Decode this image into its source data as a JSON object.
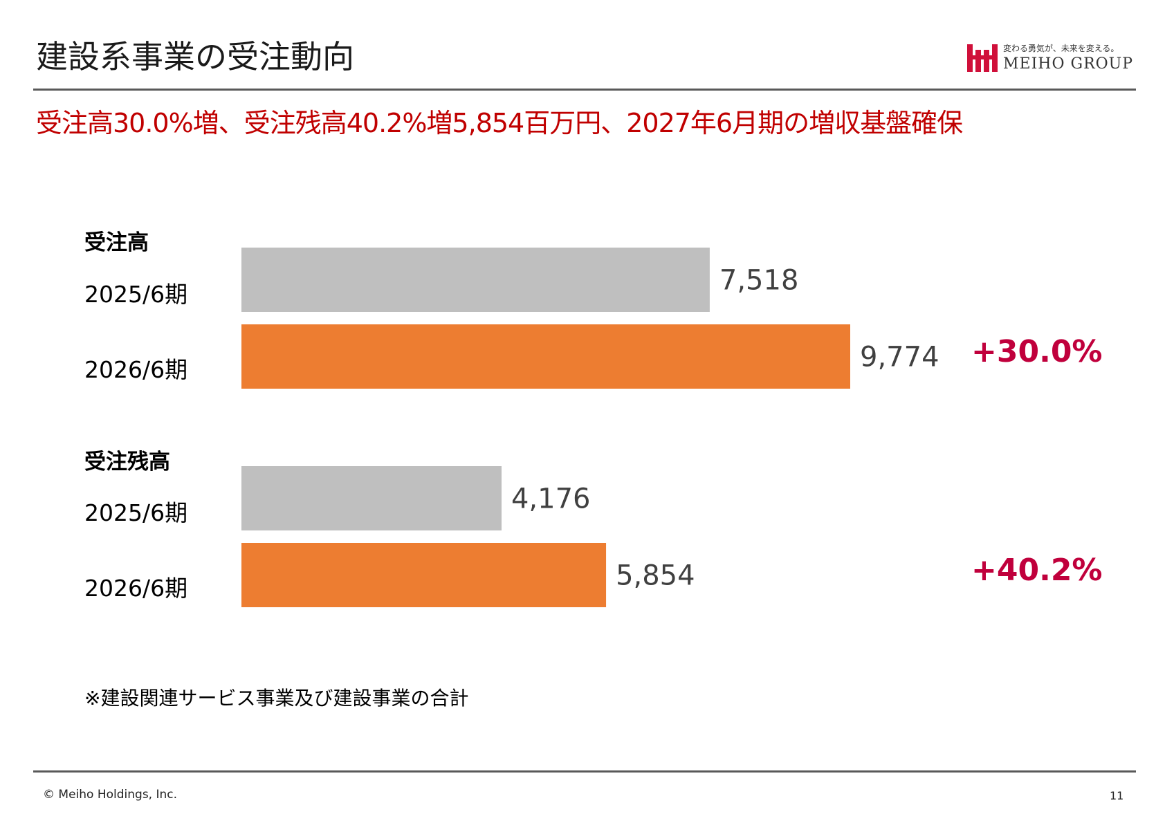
{
  "title": "建設系事業の受注動向",
  "logo": {
    "tagline": "変わる勇気が、未来を変える。",
    "name": "MEIHO GROUP"
  },
  "headline": "受注高30.0%増、受注残高40.2%増5,854百万円、2027年6月期の増収基盤確保",
  "chart_data": [
    {
      "type": "bar",
      "orientation": "horizontal",
      "title": "受注高",
      "categories": [
        "2025/6期",
        "2026/6期"
      ],
      "values": [
        7518,
        9774
      ],
      "value_labels": [
        "7,518",
        "9,774"
      ],
      "colors": [
        "#bfbfbf",
        "#ed7d31"
      ],
      "growth": "+30.0%"
    },
    {
      "type": "bar",
      "orientation": "horizontal",
      "title": "受注残高",
      "categories": [
        "2025/6期",
        "2026/6期"
      ],
      "values": [
        4176,
        5854
      ],
      "value_labels": [
        "4,176",
        "5,854"
      ],
      "colors": [
        "#bfbfbf",
        "#ed7d31"
      ],
      "growth": "+40.2%"
    }
  ],
  "note": "※建設関連サービス事業及び建設事業の合計",
  "footer": {
    "copyright": "© Meiho Holdings, Inc.",
    "page": "11"
  },
  "colors": {
    "headline": "#c00000",
    "growth": "#c0003c",
    "bar_prev": "#bfbfbf",
    "bar_curr": "#ed7d31",
    "logo": "#d0103a"
  }
}
